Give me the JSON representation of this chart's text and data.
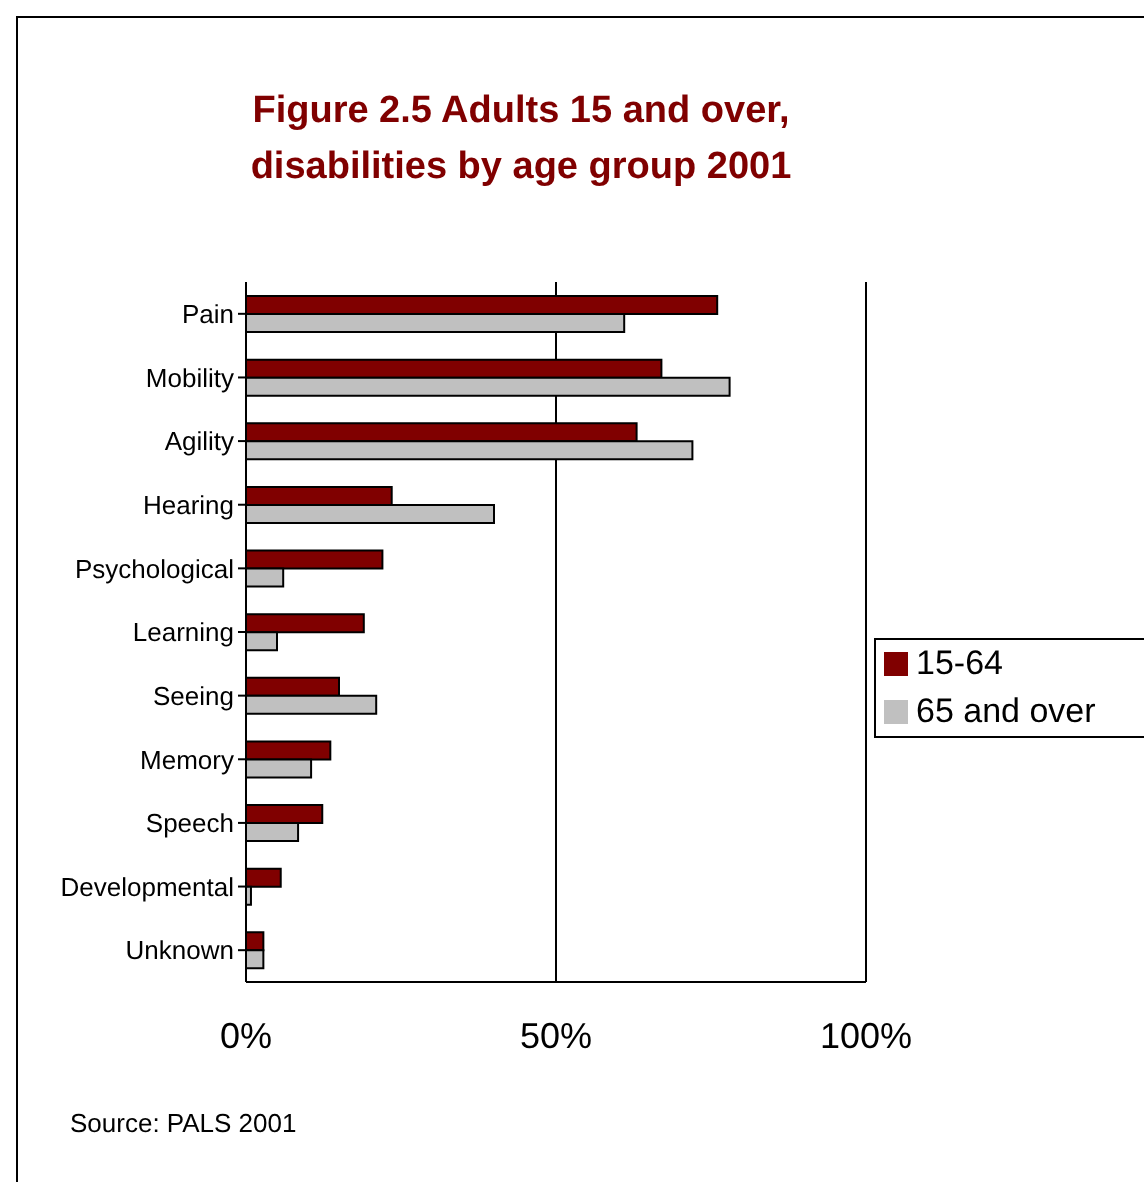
{
  "chart_data": {
    "type": "bar",
    "orientation": "horizontal",
    "title": "Figure 2.5 Adults 15 and over,\ndisabilities by age group 2001",
    "categories": [
      "Pain",
      "Mobility",
      "Agility",
      "Hearing",
      "Psychological",
      "Learning",
      "Seeing",
      "Memory",
      "Speech",
      "Developmental",
      "Unknown"
    ],
    "series": [
      {
        "name": "15-64",
        "color": "#800000",
        "values": [
          76,
          67,
          63,
          23.5,
          22,
          19,
          15,
          13.6,
          12.3,
          5.6,
          2.8
        ]
      },
      {
        "name": "65 and over",
        "color": "#c0c0c0",
        "values": [
          61,
          78,
          72,
          40,
          6,
          5,
          21,
          10.5,
          8.4,
          0.8,
          2.8
        ]
      }
    ],
    "xlim": [
      0,
      100
    ],
    "xticks": [
      {
        "value": 0,
        "label": "0%"
      },
      {
        "value": 50,
        "label": "50%"
      },
      {
        "value": 100,
        "label": "100%"
      }
    ],
    "grid": "x",
    "legend": "right",
    "annotations": [
      "Source: PALS 2001"
    ]
  }
}
